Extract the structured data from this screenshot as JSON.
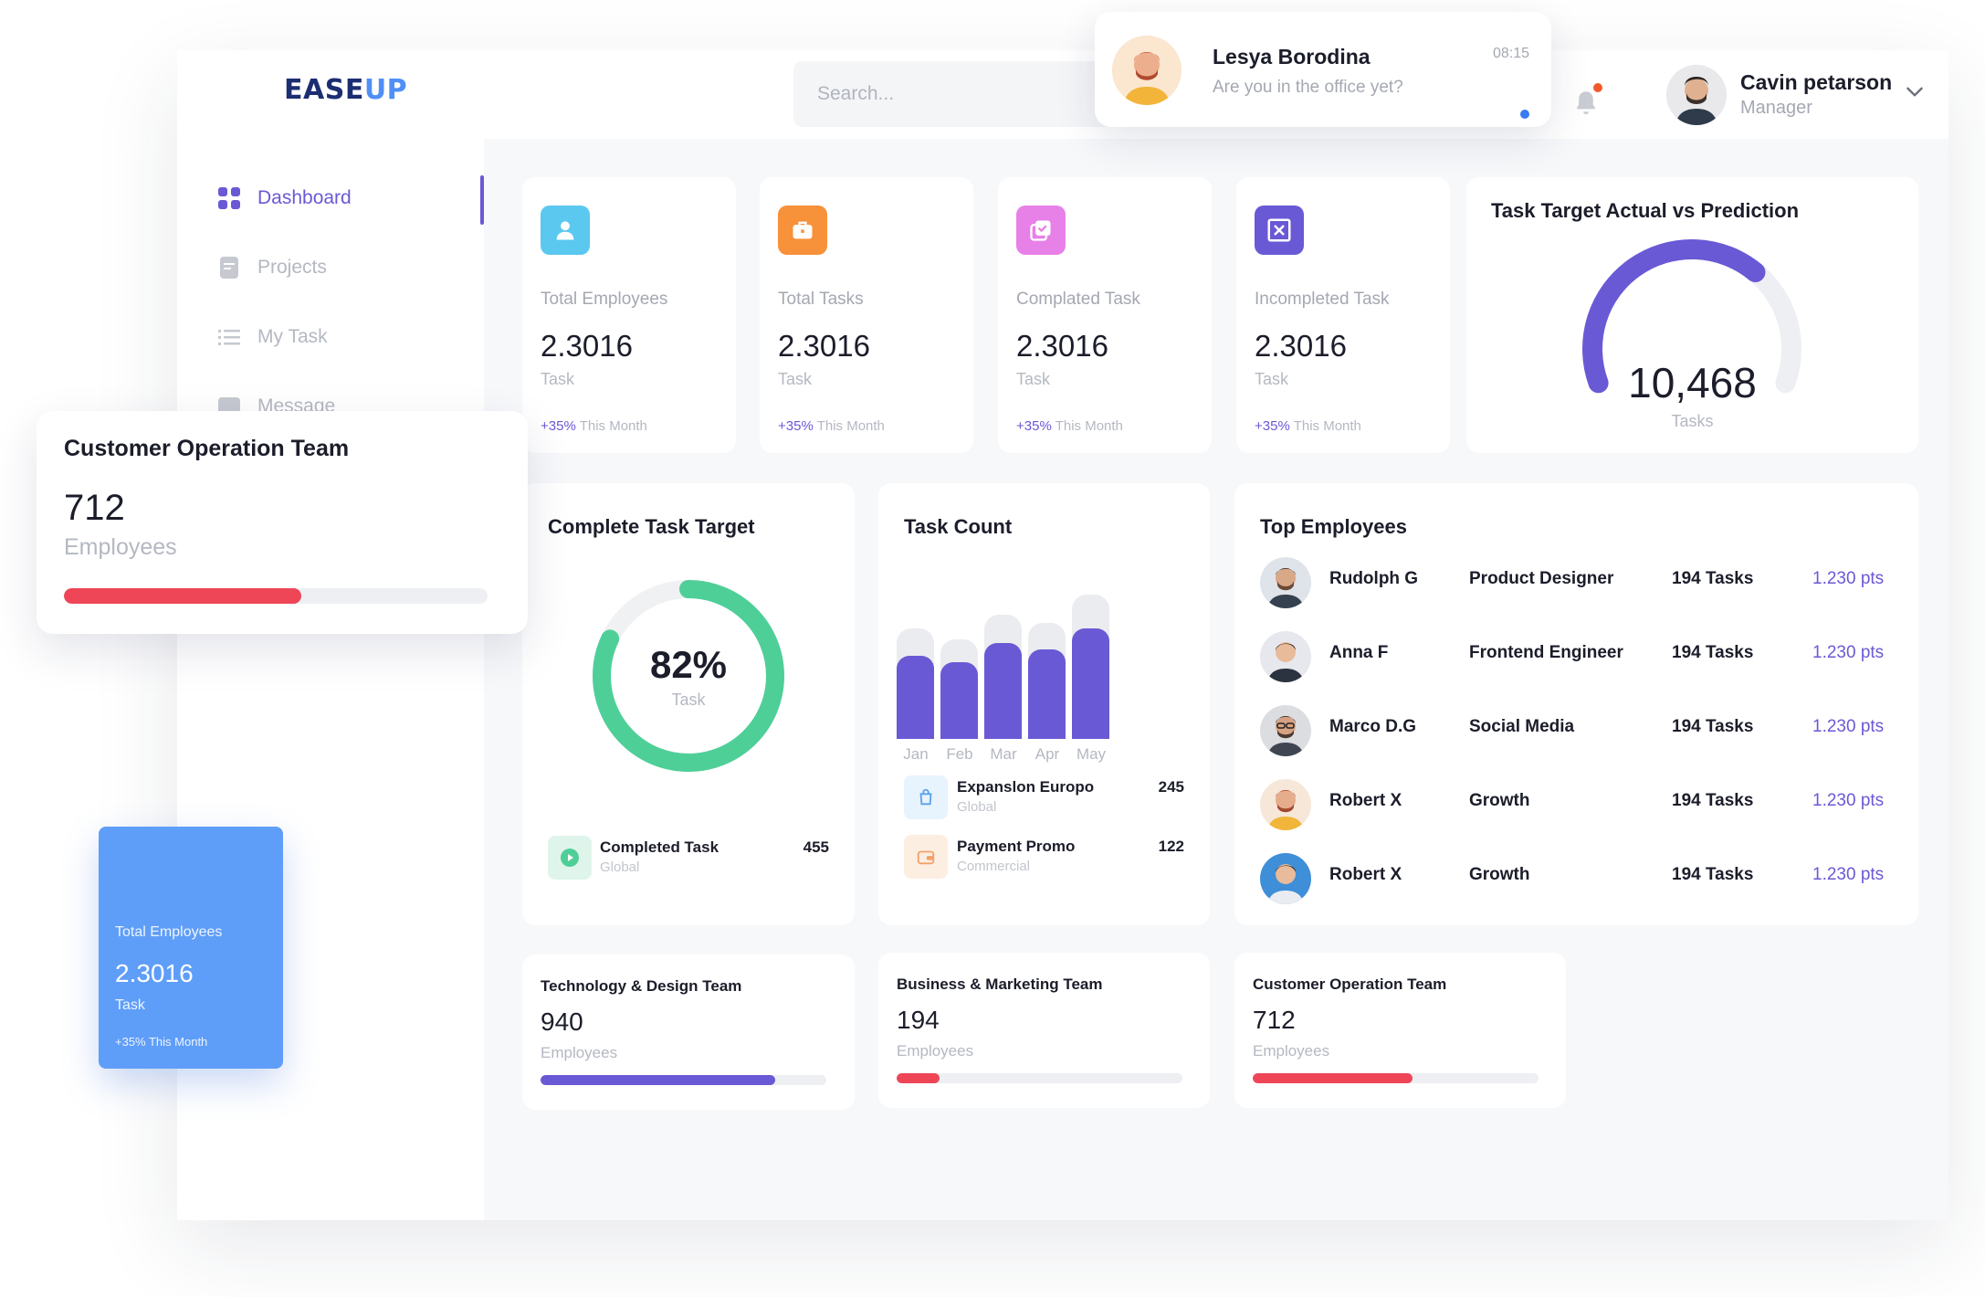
{
  "app": {
    "logo_primary": "EASE",
    "logo_accent": "UP",
    "accent_color": "#6a59d5"
  },
  "search": {
    "placeholder": "Search..."
  },
  "notification": {
    "sender": "Lesya Borodina",
    "message": "Are you in the office yet?",
    "time": "08:15"
  },
  "user": {
    "name": "Cavin petarson",
    "role": "Manager"
  },
  "sidebar": {
    "items": [
      {
        "label": "Dashboard",
        "icon": "grid-icon",
        "active": true
      },
      {
        "label": "Projects",
        "icon": "document-icon",
        "active": false
      },
      {
        "label": "My Task",
        "icon": "list-icon",
        "active": false
      },
      {
        "label": "Message",
        "icon": "message-icon",
        "active": false
      }
    ]
  },
  "stats": [
    {
      "label": "Total Employees",
      "value": "2.3016",
      "unit": "Task",
      "delta": "+35%",
      "delta_text": "This Month",
      "icon": "user-icon",
      "color": "#5bc8f0"
    },
    {
      "label": "Total Tasks",
      "value": "2.3016",
      "unit": "Task",
      "delta": "+35%",
      "delta_text": "This Month",
      "icon": "briefcase-icon",
      "color": "#f7913a"
    },
    {
      "label": "Complated Task",
      "value": "2.3016",
      "unit": "Task",
      "delta": "+35%",
      "delta_text": "This Month",
      "icon": "check-copy-icon",
      "color": "#e781e8"
    },
    {
      "label": "Incompleted Task",
      "value": "2.3016",
      "unit": "Task",
      "delta": "+35%",
      "delta_text": "This Month",
      "icon": "close-box-icon",
      "color": "#6a59d5"
    }
  ],
  "gauge": {
    "title": "Task Target Actual vs Prediction",
    "value": "10,468",
    "unit": "Tasks",
    "fraction": 0.68
  },
  "donut": {
    "title": "Complete Task Target",
    "value_text": "82%",
    "percent": 82,
    "unit": "Task",
    "color": "#4fcf98",
    "legend": {
      "name": "Completed Task",
      "sub": "Global",
      "value": "455"
    }
  },
  "chart_data": {
    "type": "bar",
    "title": "Task Count",
    "categories": [
      "Jan",
      "Feb",
      "Mar",
      "Apr",
      "May"
    ],
    "values": [
      74,
      68,
      85,
      79,
      98
    ],
    "capacity": [
      98,
      88,
      110,
      103,
      128
    ],
    "ylim": [
      0,
      128
    ]
  },
  "task_count_legend": [
    {
      "name": "Expanslon Europo",
      "sub": "Global",
      "value": "245",
      "icon": "bag-icon",
      "bg": "#e7f3fd",
      "fg": "#5aa3ec"
    },
    {
      "name": "Payment Promo",
      "sub": "Commercial",
      "value": "122",
      "icon": "wallet-icon",
      "bg": "#fdeee2",
      "fg": "#f2a06a"
    }
  ],
  "top_employees": {
    "title": "Top Employees",
    "rows": [
      {
        "name": "Rudolph G",
        "role": "Product Designer",
        "tasks": "194 Tasks",
        "pts": "1.230 pts"
      },
      {
        "name": "Anna F",
        "role": "Frontend Engineer",
        "tasks": "194 Tasks",
        "pts": "1.230 pts"
      },
      {
        "name": "Marco D.G",
        "role": "Social Media",
        "tasks": "194 Tasks",
        "pts": "1.230 pts"
      },
      {
        "name": "Robert X",
        "role": "Growth",
        "tasks": "194 Tasks",
        "pts": "1.230 pts"
      },
      {
        "name": "Robert X",
        "role": "Growth",
        "tasks": "194 Tasks",
        "pts": "1.230 pts"
      }
    ]
  },
  "teams": [
    {
      "title": "Technology & Design Team",
      "count": "940",
      "unit": "Employees",
      "progress": 0.82,
      "color": "#6a59d5"
    },
    {
      "title": "Business & Marketing Team",
      "count": "194",
      "unit": "Employees",
      "progress": 0.15,
      "color": "#ee4657"
    },
    {
      "title": "Customer Operation Team",
      "count": "712",
      "unit": "Employees",
      "progress": 0.56,
      "color": "#ee4657"
    }
  ],
  "floating_team": {
    "title": "Customer Operation Team",
    "count": "712",
    "unit": "Employees",
    "progress": 0.56,
    "color": "#ee4657"
  },
  "floating_stat": {
    "label": "Total Employees",
    "value": "2.3016",
    "unit": "Task",
    "delta_text": "+35% This Month"
  }
}
